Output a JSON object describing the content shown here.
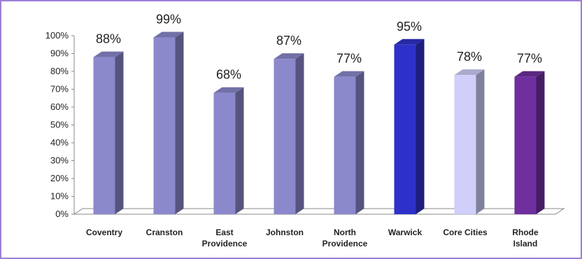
{
  "chart_data": {
    "type": "bar",
    "categories": [
      "Coventry",
      "Cranston",
      "East Providence",
      "Johnston",
      "North Providence",
      "Warwick",
      "Core Cities",
      "Rhode Island"
    ],
    "category_lines": [
      [
        "Coventry"
      ],
      [
        "Cranston"
      ],
      [
        "East",
        "Providence"
      ],
      [
        "Johnston"
      ],
      [
        "North",
        "Providence"
      ],
      [
        "Warwick"
      ],
      [
        "Core Cities"
      ],
      [
        "Rhode",
        "Island"
      ]
    ],
    "values": [
      88,
      99,
      68,
      87,
      77,
      95,
      78,
      77
    ],
    "data_labels": [
      "88%",
      "99%",
      "68%",
      "87%",
      "77%",
      "95%",
      "78%",
      "77%"
    ],
    "y_ticks": [
      "0%",
      "10%",
      "20%",
      "30%",
      "40%",
      "50%",
      "60%",
      "70%",
      "80%",
      "90%",
      "100%"
    ],
    "ylim": [
      0,
      100
    ],
    "bar_colors": [
      "#8b88cc",
      "#8b88cc",
      "#8b88cc",
      "#8b88cc",
      "#8b88cc",
      "#2e31c9",
      "#d0cffa",
      "#6f2f9f"
    ],
    "grid": false,
    "style": "3d-column"
  }
}
